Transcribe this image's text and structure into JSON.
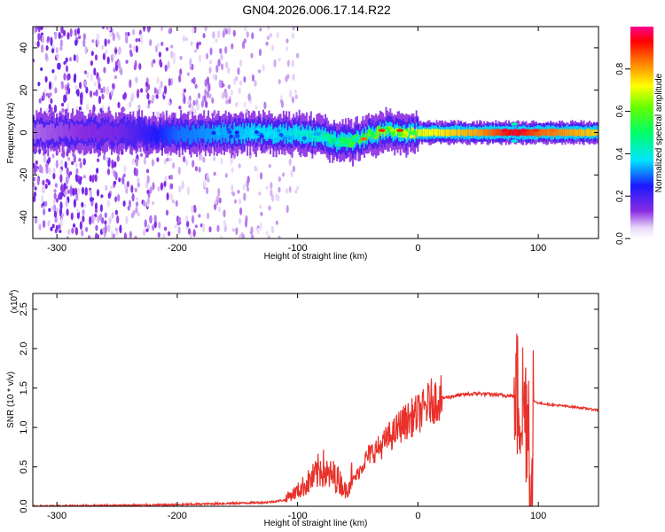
{
  "title": "GN04.2026.006.17.14.R22",
  "chart_data": [
    {
      "type": "heatmap",
      "panel": "spectrogram",
      "xlabel": "Height of straight line (km)",
      "ylabel": "Frequency (Hz)",
      "xlim": [
        -320,
        150
      ],
      "ylim": [
        -50,
        50
      ],
      "x_ticks": [
        -300,
        -200,
        -100,
        0,
        100
      ],
      "x_tick_labels": [
        "-300",
        "-200",
        "-100",
        "0",
        "100"
      ],
      "y_ticks": [
        -40,
        -20,
        0,
        20,
        40
      ],
      "y_tick_labels": [
        "-40",
        "-20",
        "0",
        "20",
        "40"
      ],
      "colorbar": {
        "label": "Normalized spectral amplitude",
        "range": [
          0,
          1
        ],
        "ticks": [
          0.0,
          0.2,
          0.4,
          0.6,
          0.8
        ],
        "tick_labels": [
          "0.0",
          "0.2",
          "0.4",
          "0.6",
          "0.8"
        ]
      },
      "band": {
        "center_x": [
          -320,
          -250,
          -200,
          -150,
          -100,
          -80,
          -60,
          -45,
          -30,
          -15,
          0,
          50,
          80,
          100,
          150
        ],
        "center_freq": [
          0,
          0,
          -1,
          0,
          -1,
          -2,
          -5,
          -2,
          1,
          0,
          0,
          0,
          0,
          0,
          0
        ],
        "peak_amplitude": [
          0.1,
          0.15,
          0.3,
          0.35,
          0.4,
          0.45,
          0.55,
          0.6,
          0.65,
          0.7,
          0.7,
          0.8,
          0.95,
          0.85,
          0.75
        ]
      },
      "noise_region_x": [
        -320,
        -120
      ]
    },
    {
      "type": "line",
      "panel": "snr",
      "xlabel": "Height of straight line (km)",
      "ylabel": "SNR (10 * v/v)",
      "scale_label": "(x10",
      "scale_exp": "4",
      "scale_close": ")",
      "xlim": [
        -320,
        150
      ],
      "ylim": [
        0,
        2.7
      ],
      "x_ticks": [
        -300,
        -200,
        -100,
        0,
        100
      ],
      "x_tick_labels": [
        "-300",
        "-200",
        "-100",
        "0",
        "100"
      ],
      "y_ticks": [
        0.0,
        0.5,
        1.0,
        1.5,
        2.0,
        2.5
      ],
      "y_tick_labels": [
        "0.0",
        "0.5",
        "1.0",
        "1.5",
        "2.0",
        "2.5"
      ],
      "series": [
        {
          "name": "SNR",
          "color": "#e8312a",
          "x": [
            -320,
            -250,
            -200,
            -150,
            -125,
            -110,
            -100,
            -95,
            -90,
            -85,
            -80,
            -75,
            -70,
            -65,
            -60,
            -55,
            -50,
            -45,
            -40,
            -35,
            -30,
            -25,
            -20,
            -15,
            -10,
            -5,
            0,
            5,
            10,
            15,
            20,
            30,
            40,
            50,
            60,
            70,
            80,
            85,
            88,
            90,
            92,
            93,
            95,
            100,
            110,
            130,
            150
          ],
          "y": [
            0.0,
            0.01,
            0.02,
            0.04,
            0.05,
            0.08,
            0.15,
            0.2,
            0.25,
            0.3,
            0.4,
            0.3,
            0.3,
            0.25,
            0.15,
            0.3,
            0.4,
            0.55,
            0.65,
            0.7,
            0.75,
            0.85,
            0.9,
            1.0,
            1.05,
            1.1,
            1.15,
            1.2,
            1.3,
            1.32,
            1.37,
            1.4,
            1.42,
            1.43,
            1.42,
            1.41,
            1.4,
            1.35,
            1.3,
            1.2,
            1.25,
            1.25,
            1.35,
            1.31,
            1.29,
            1.26,
            1.22
          ]
        }
      ]
    }
  ]
}
